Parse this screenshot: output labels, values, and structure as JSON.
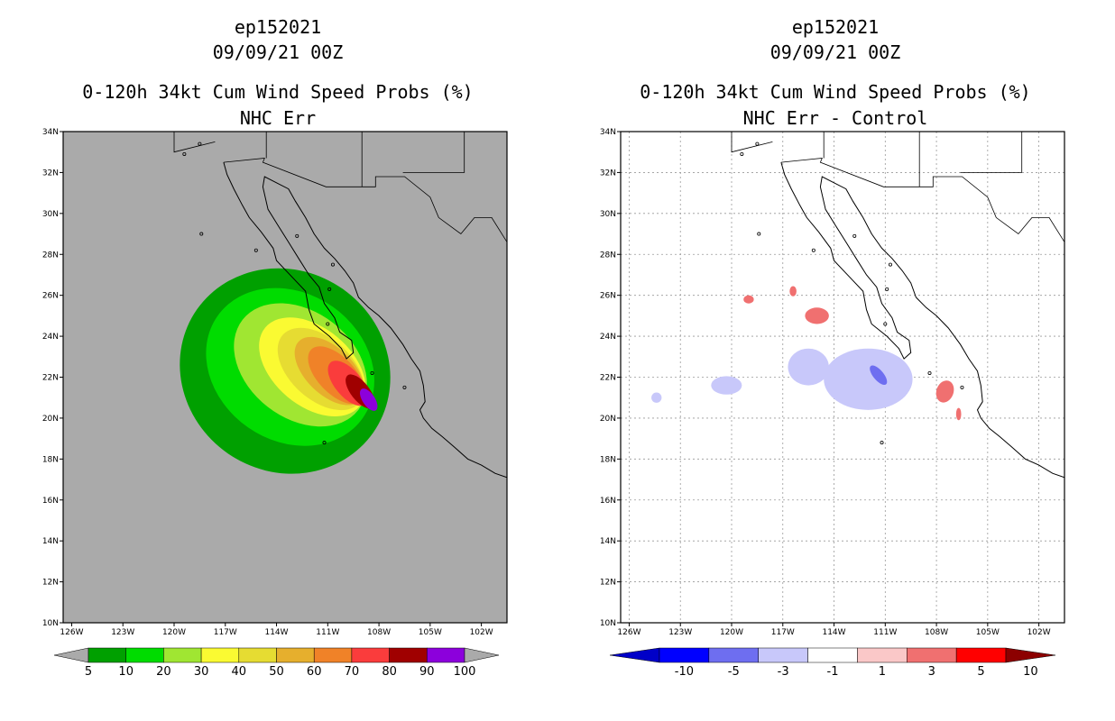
{
  "chart_data": [
    {
      "type": "heatmap",
      "storm_id": "ep152021",
      "date": "09/09/21 00Z",
      "title": "0-120h 34kt Cum Wind Speed Probs (%)",
      "subtitle": "NHC Err",
      "lon_ticks": [
        "126W",
        "123W",
        "120W",
        "117W",
        "114W",
        "111W",
        "108W",
        "105W",
        "102W"
      ],
      "lat_ticks": [
        "34N",
        "32N",
        "30N",
        "28N",
        "26N",
        "24N",
        "22N",
        "20N",
        "18N",
        "16N",
        "14N",
        "12N",
        "10N"
      ],
      "xlim_lon": [
        -126.5,
        -100.5
      ],
      "ylim_lat": [
        10,
        34
      ],
      "grid": false,
      "missing_color": "#aaaaaa",
      "colorbar": {
        "labels": [
          "5",
          "10",
          "20",
          "30",
          "40",
          "50",
          "60",
          "70",
          "80",
          "90",
          "100"
        ],
        "colors": [
          "#009600",
          "#00dc00",
          "#a0e632",
          "#e6dc32",
          "#e6dc32",
          "#e6af2d",
          "#f08228",
          "#fa3c3c",
          "#a00000",
          "#8c00dc"
        ],
        "colors_fixed": [
          "#00a000",
          "#00dc00",
          "#a0e632",
          "#fafa32",
          "#e6dc32",
          "#e6af2d",
          "#f08228",
          "#fa3c3c",
          "#a00000",
          "#8c00dc"
        ],
        "under_color": "#aaaaaa",
        "over_color": "#aaaaaa"
      },
      "contours": [
        {
          "level": 5,
          "center": [
            -113.5,
            22.3
          ],
          "rx": 6.3,
          "ry": 4.9,
          "rot": 35
        },
        {
          "level": 10,
          "center": [
            -113.2,
            22.5
          ],
          "rx": 5.2,
          "ry": 3.6,
          "rot": 35
        },
        {
          "level": 20,
          "center": [
            -112.6,
            22.6
          ],
          "rx": 4.3,
          "ry": 2.6,
          "rot": 38
        },
        {
          "level": 30,
          "center": [
            -111.9,
            22.5
          ],
          "rx": 3.6,
          "ry": 1.9,
          "rot": 40
        },
        {
          "level": 40,
          "center": [
            -111.4,
            22.4
          ],
          "rx": 3.0,
          "ry": 1.5,
          "rot": 42
        },
        {
          "level": 50,
          "center": [
            -110.9,
            22.3
          ],
          "rx": 2.5,
          "ry": 1.15,
          "rot": 44
        },
        {
          "level": 60,
          "center": [
            -110.5,
            22.1
          ],
          "rx": 2.1,
          "ry": 0.9,
          "rot": 46
        },
        {
          "level": 70,
          "center": [
            -109.8,
            21.7
          ],
          "rx": 1.6,
          "ry": 0.65,
          "rot": 50
        },
        {
          "level": 80,
          "center": [
            -109.1,
            21.3
          ],
          "rx": 1.2,
          "ry": 0.45,
          "rot": 52
        },
        {
          "level": 90,
          "center": [
            -108.6,
            20.9
          ],
          "rx": 0.75,
          "ry": 0.3,
          "rot": 56
        }
      ]
    },
    {
      "type": "heatmap",
      "storm_id": "ep152021",
      "date": "09/09/21 00Z",
      "title": "0-120h 34kt Cum Wind Speed Probs (%)",
      "subtitle": "NHC Err - Control",
      "lon_ticks": [
        "126W",
        "123W",
        "120W",
        "117W",
        "114W",
        "111W",
        "108W",
        "105W",
        "102W"
      ],
      "lat_ticks": [
        "34N",
        "32N",
        "30N",
        "28N",
        "26N",
        "24N",
        "22N",
        "20N",
        "18N",
        "16N",
        "14N",
        "12N",
        "10N"
      ],
      "xlim_lon": [
        -126.5,
        -100.5
      ],
      "ylim_lat": [
        10,
        34
      ],
      "grid": true,
      "colorbar": {
        "labels": [
          "-10",
          "-5",
          "-3",
          "-1",
          "1",
          "3",
          "5",
          "10"
        ],
        "colors": [
          "#0000c8",
          "#0000ff",
          "#6e6ef0",
          "#c8c8fa",
          "#ffffff",
          "#fac8c8",
          "#f07070",
          "#ff0000",
          "#8c0000"
        ],
        "under_color": "#0000c8",
        "over_color": "#8c0000"
      },
      "patches": [
        {
          "value": -3,
          "center": [
            -112.0,
            21.9
          ],
          "rx": 2.6,
          "ry": 1.5,
          "rot": 0
        },
        {
          "value": -3,
          "center": [
            -115.5,
            22.5
          ],
          "rx": 1.2,
          "ry": 0.9,
          "rot": 0
        },
        {
          "value": -3,
          "center": [
            -120.3,
            21.6
          ],
          "rx": 0.9,
          "ry": 0.45,
          "rot": 0
        },
        {
          "value": -3,
          "center": [
            -124.4,
            21.0
          ],
          "rx": 0.3,
          "ry": 0.25,
          "rot": 0
        },
        {
          "value": -5,
          "center": [
            -111.4,
            22.1
          ],
          "rx": 0.7,
          "ry": 0.25,
          "rot": 50
        },
        {
          "value": 3,
          "center": [
            -115.0,
            25.0
          ],
          "rx": 0.7,
          "ry": 0.4,
          "rot": 0
        },
        {
          "value": 3,
          "center": [
            -119.0,
            25.8
          ],
          "rx": 0.3,
          "ry": 0.2,
          "rot": 0
        },
        {
          "value": 3,
          "center": [
            -116.4,
            26.2
          ],
          "rx": 0.2,
          "ry": 0.25,
          "rot": 0
        },
        {
          "value": 3,
          "center": [
            -107.5,
            21.3
          ],
          "rx": 0.5,
          "ry": 0.55,
          "rot": 20
        },
        {
          "value": 3,
          "center": [
            -106.7,
            20.2
          ],
          "rx": 0.15,
          "ry": 0.3,
          "rot": 0
        }
      ]
    }
  ]
}
